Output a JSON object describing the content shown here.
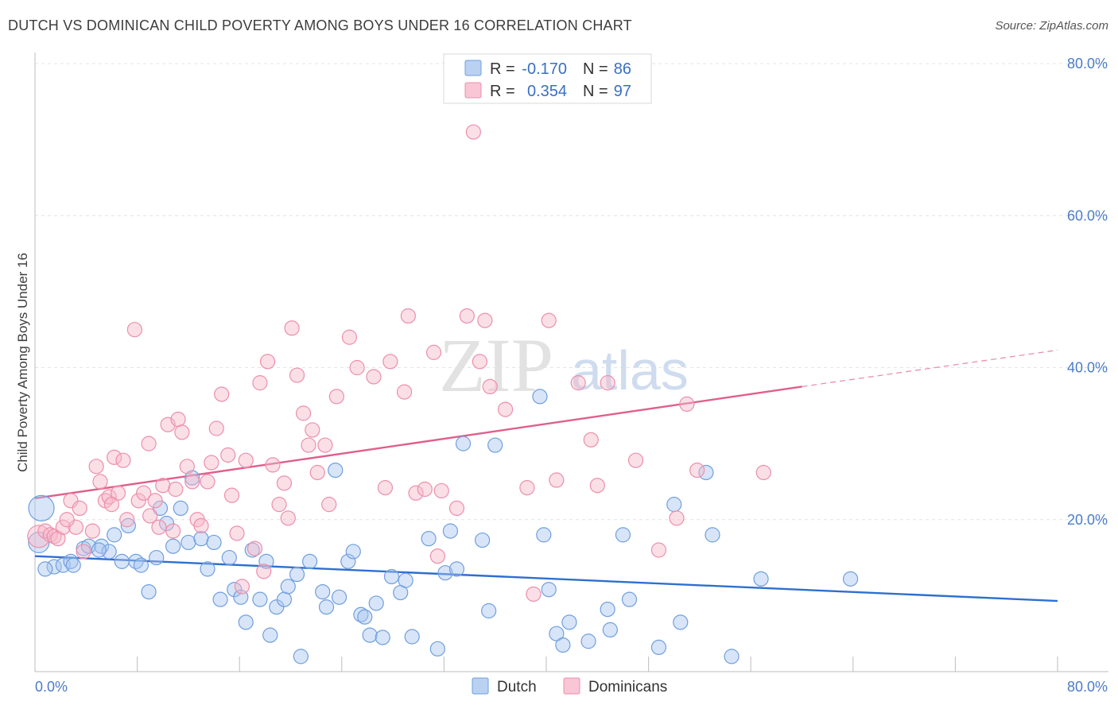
{
  "title": "DUTCH VS DOMINICAN CHILD POVERTY AMONG BOYS UNDER 16 CORRELATION CHART",
  "source": "Source: ZipAtlas.com",
  "watermark": {
    "part1": "ZIP",
    "part2": "atlas"
  },
  "stats": [
    {
      "r_label": "R =",
      "r_value": "-0.170",
      "n_label": "N =",
      "n_value": "86",
      "color": "#a9c6ef"
    },
    {
      "r_label": "R =",
      "r_value": "0.354",
      "n_label": "N =",
      "n_value": "97",
      "color": "#f6b8ca"
    }
  ],
  "legend": [
    {
      "label": "Dutch",
      "color": "#a9c6ef"
    },
    {
      "label": "Dominicans",
      "color": "#f6b8ca"
    }
  ],
  "chart_data": {
    "type": "scatter",
    "title": "DUTCH VS DOMINICAN CHILD POVERTY AMONG BOYS UNDER 16 CORRELATION CHART",
    "xlabel": "",
    "ylabel": "Child Poverty Among Boys Under 16",
    "xlim": [
      0,
      80
    ],
    "ylim": [
      0,
      80
    ],
    "x_tick_labels": [
      "0.0%",
      "80.0%"
    ],
    "y_tick_labels": [
      "20.0%",
      "40.0%",
      "60.0%",
      "80.0%"
    ],
    "y_ticks": [
      20,
      40,
      60,
      80
    ],
    "grid": true,
    "legend_position": "bottom-center",
    "series": [
      {
        "name": "Dutch",
        "color": "#a9c6ef",
        "stroke": "#6f9fdf",
        "trend": {
          "x": [
            0,
            80
          ],
          "y": [
            15.2,
            9.3
          ],
          "color": "#2e6fd0"
        },
        "points": [
          [
            0.5,
            21.5
          ],
          [
            0.3,
            17.0
          ],
          [
            1.5,
            13.8
          ],
          [
            2.2,
            14.0
          ],
          [
            2.8,
            14.5
          ],
          [
            3.8,
            16.2
          ],
          [
            4.2,
            16.5
          ],
          [
            5.2,
            16.5
          ],
          [
            5.8,
            15.8
          ],
          [
            6.2,
            18.0
          ],
          [
            6.8,
            14.5
          ],
          [
            7.3,
            19.2
          ],
          [
            7.9,
            14.5
          ],
          [
            8.3,
            14.0
          ],
          [
            8.9,
            10.5
          ],
          [
            9.5,
            15.0
          ],
          [
            9.8,
            21.5
          ],
          [
            10.3,
            19.5
          ],
          [
            10.8,
            16.5
          ],
          [
            11.4,
            21.5
          ],
          [
            12.0,
            17.0
          ],
          [
            12.3,
            25.5
          ],
          [
            13.0,
            17.5
          ],
          [
            13.5,
            13.5
          ],
          [
            14.0,
            17.0
          ],
          [
            14.5,
            9.5
          ],
          [
            15.2,
            15.0
          ],
          [
            15.6,
            10.8
          ],
          [
            16.1,
            9.8
          ],
          [
            16.5,
            6.5
          ],
          [
            17.0,
            16.0
          ],
          [
            17.6,
            9.5
          ],
          [
            18.1,
            14.5
          ],
          [
            18.4,
            4.8
          ],
          [
            18.9,
            8.5
          ],
          [
            19.5,
            9.5
          ],
          [
            19.8,
            11.2
          ],
          [
            20.5,
            12.8
          ],
          [
            20.8,
            2.0
          ],
          [
            21.5,
            14.5
          ],
          [
            22.5,
            10.5
          ],
          [
            22.8,
            8.5
          ],
          [
            23.5,
            26.5
          ],
          [
            23.8,
            9.8
          ],
          [
            24.5,
            14.5
          ],
          [
            24.9,
            15.8
          ],
          [
            25.5,
            7.5
          ],
          [
            25.8,
            7.2
          ],
          [
            26.2,
            4.8
          ],
          [
            26.7,
            9.0
          ],
          [
            27.2,
            4.5
          ],
          [
            27.9,
            12.5
          ],
          [
            28.6,
            10.4
          ],
          [
            29.0,
            12.0
          ],
          [
            29.5,
            4.6
          ],
          [
            30.8,
            17.5
          ],
          [
            31.5,
            3.0
          ],
          [
            32.1,
            13.0
          ],
          [
            32.5,
            18.5
          ],
          [
            33.0,
            13.5
          ],
          [
            33.5,
            30.0
          ],
          [
            35.0,
            17.3
          ],
          [
            35.5,
            8.0
          ],
          [
            36.0,
            29.8
          ],
          [
            39.5,
            36.2
          ],
          [
            39.8,
            18.0
          ],
          [
            40.2,
            10.8
          ],
          [
            40.8,
            5.0
          ],
          [
            41.3,
            3.5
          ],
          [
            41.8,
            6.5
          ],
          [
            43.3,
            4.0
          ],
          [
            44.8,
            8.2
          ],
          [
            45.0,
            5.5
          ],
          [
            46.0,
            18.0
          ],
          [
            46.5,
            9.5
          ],
          [
            48.8,
            3.2
          ],
          [
            50.0,
            22.0
          ],
          [
            50.5,
            6.5
          ],
          [
            52.5,
            26.2
          ],
          [
            53.0,
            18.0
          ],
          [
            54.5,
            2.0
          ],
          [
            56.8,
            12.2
          ],
          [
            63.8,
            12.2
          ],
          [
            0.8,
            13.5
          ],
          [
            3.0,
            14.0
          ],
          [
            5.0,
            16.0
          ]
        ]
      },
      {
        "name": "Dominicans",
        "color": "#f6b8ca",
        "stroke": "#ec8fab",
        "trend": {
          "x": [
            0,
            60
          ],
          "y": [
            22.8,
            37.5
          ],
          "dash_x": [
            60,
            80
          ],
          "dash_y": [
            37.5,
            42.3
          ],
          "color": "#e05f8c"
        },
        "points": [
          [
            0.3,
            17.8
          ],
          [
            0.8,
            18.5
          ],
          [
            1.2,
            18.0
          ],
          [
            1.5,
            17.8
          ],
          [
            1.8,
            17.5
          ],
          [
            2.2,
            19.0
          ],
          [
            2.8,
            22.5
          ],
          [
            3.2,
            19.0
          ],
          [
            3.5,
            21.5
          ],
          [
            3.8,
            15.8
          ],
          [
            4.5,
            18.5
          ],
          [
            4.8,
            27.0
          ],
          [
            5.1,
            25.0
          ],
          [
            5.5,
            22.5
          ],
          [
            5.8,
            23.0
          ],
          [
            6.2,
            28.2
          ],
          [
            6.5,
            23.5
          ],
          [
            6.9,
            27.8
          ],
          [
            7.2,
            20.0
          ],
          [
            7.8,
            45.0
          ],
          [
            8.1,
            22.5
          ],
          [
            8.5,
            23.5
          ],
          [
            8.9,
            30.0
          ],
          [
            9.4,
            22.5
          ],
          [
            9.7,
            19.0
          ],
          [
            10.0,
            24.5
          ],
          [
            10.4,
            32.5
          ],
          [
            10.8,
            18.5
          ],
          [
            11.2,
            33.2
          ],
          [
            11.5,
            31.5
          ],
          [
            11.9,
            27.0
          ],
          [
            12.3,
            25.0
          ],
          [
            12.7,
            20.0
          ],
          [
            13.0,
            19.2
          ],
          [
            13.5,
            25.0
          ],
          [
            13.8,
            27.5
          ],
          [
            14.2,
            32.0
          ],
          [
            14.6,
            36.5
          ],
          [
            15.1,
            28.5
          ],
          [
            15.4,
            23.2
          ],
          [
            15.8,
            18.2
          ],
          [
            16.2,
            11.2
          ],
          [
            16.5,
            27.8
          ],
          [
            17.2,
            16.2
          ],
          [
            17.6,
            38.0
          ],
          [
            17.9,
            13.2
          ],
          [
            18.2,
            40.8
          ],
          [
            18.6,
            27.2
          ],
          [
            19.1,
            22.0
          ],
          [
            19.5,
            24.8
          ],
          [
            19.8,
            20.2
          ],
          [
            20.1,
            45.2
          ],
          [
            20.5,
            39.0
          ],
          [
            21.0,
            34.0
          ],
          [
            21.4,
            29.8
          ],
          [
            21.7,
            31.8
          ],
          [
            22.1,
            26.2
          ],
          [
            22.7,
            29.8
          ],
          [
            23.0,
            22.0
          ],
          [
            23.6,
            36.2
          ],
          [
            24.6,
            44.0
          ],
          [
            25.2,
            40.0
          ],
          [
            26.5,
            38.8
          ],
          [
            27.4,
            24.2
          ],
          [
            27.8,
            40.8
          ],
          [
            28.9,
            36.8
          ],
          [
            29.2,
            46.8
          ],
          [
            29.8,
            23.5
          ],
          [
            30.5,
            24.0
          ],
          [
            31.2,
            42.0
          ],
          [
            31.5,
            15.2
          ],
          [
            31.8,
            23.8
          ],
          [
            33.0,
            21.5
          ],
          [
            33.8,
            46.8
          ],
          [
            34.8,
            40.8
          ],
          [
            35.2,
            46.2
          ],
          [
            35.6,
            37.5
          ],
          [
            36.8,
            34.5
          ],
          [
            38.5,
            24.2
          ],
          [
            39.0,
            10.2
          ],
          [
            40.2,
            46.2
          ],
          [
            40.8,
            25.2
          ],
          [
            42.5,
            38.0
          ],
          [
            43.5,
            30.5
          ],
          [
            44.0,
            24.5
          ],
          [
            44.8,
            38.0
          ],
          [
            47.0,
            27.8
          ],
          [
            48.8,
            16.0
          ],
          [
            50.2,
            20.2
          ],
          [
            51.0,
            35.2
          ],
          [
            51.8,
            26.5
          ],
          [
            57.0,
            26.2
          ],
          [
            34.3,
            71.0
          ],
          [
            11.0,
            24.0
          ],
          [
            9.0,
            20.5
          ],
          [
            6.0,
            22.0
          ],
          [
            2.5,
            20.0
          ]
        ]
      }
    ]
  }
}
